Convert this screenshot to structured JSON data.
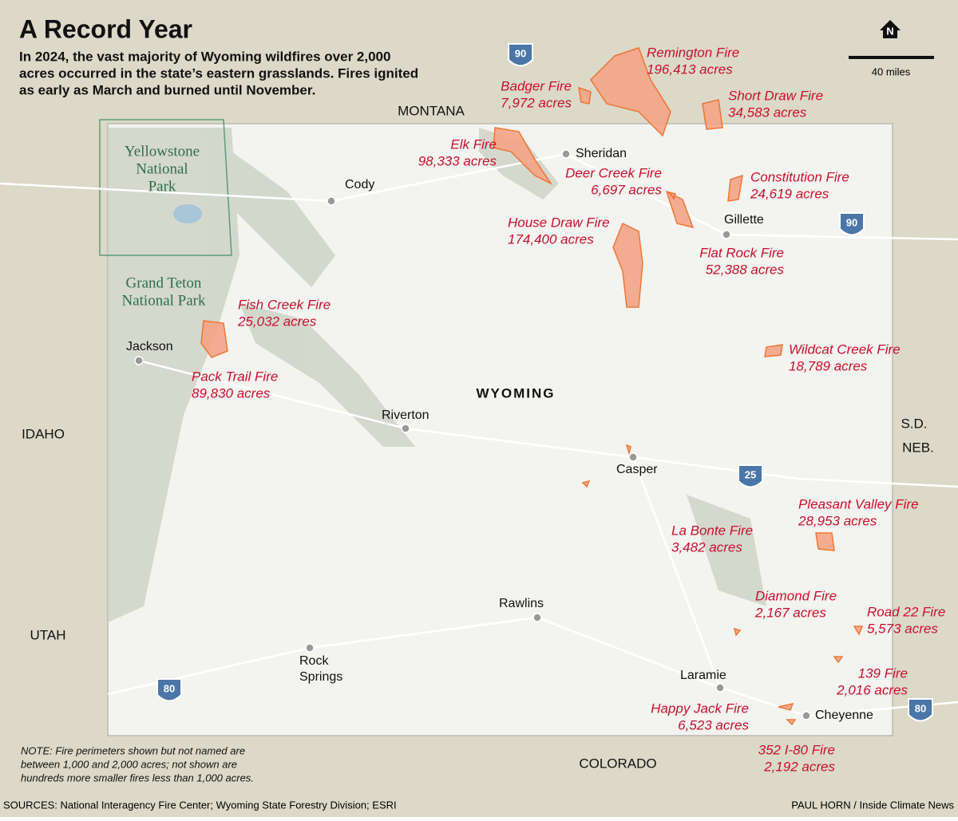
{
  "header": {
    "title": "A Record Year",
    "subtitle": [
      "In 2024, the vast majority of Wyoming wildfires over 2,000",
      "acres occurred in the state’s eastern grasslands. Fires ignited",
      "as early as March and burned until November."
    ]
  },
  "fires": [
    {
      "name": "Remington Fire",
      "acres": "196,413 acres"
    },
    {
      "name": "Badger Fire",
      "acres": "7,972 acres"
    },
    {
      "name": "Short Draw Fire",
      "acres": "34,583 acres"
    },
    {
      "name": "Elk Fire",
      "acres": "98,333 acres"
    },
    {
      "name": "Deer Creek Fire",
      "acres": "6,697 acres"
    },
    {
      "name": "Constitution Fire",
      "acres": "24,619 acres"
    },
    {
      "name": "House Draw Fire",
      "acres": "174,400 acres"
    },
    {
      "name": "Flat Rock Fire",
      "acres": "52,388 acres"
    },
    {
      "name": "Fish Creek Fire",
      "acres": "25,032 acres"
    },
    {
      "name": "Pack Trail Fire",
      "acres": "89,830 acres"
    },
    {
      "name": "Wildcat Creek Fire",
      "acres": "18,789 acres"
    },
    {
      "name": "Pleasant Valley Fire",
      "acres": "28,953 acres"
    },
    {
      "name": "La Bonte Fire",
      "acres": "3,482 acres"
    },
    {
      "name": "Diamond Fire",
      "acres": "2,167 acres"
    },
    {
      "name": "Road 22 Fire",
      "acres": "5,573 acres"
    },
    {
      "name": "139 Fire",
      "acres": "2,016 acres"
    },
    {
      "name": "Happy Jack Fire",
      "acres": "6,523 acres"
    },
    {
      "name": "352 I-80 Fire",
      "acres": "2,192 acres"
    }
  ],
  "states": [
    "MONTANA",
    "IDAHO",
    "UTAH",
    "COLORADO",
    "S.D.",
    "NEB.",
    "WYOMING"
  ],
  "cities": [
    [
      "Cody"
    ],
    [
      "Sheridan"
    ],
    [
      "Gillette"
    ],
    [
      "Jackson"
    ],
    [
      "Riverton"
    ],
    [
      "Casper"
    ],
    [
      "Rawlins"
    ],
    [
      "Rock",
      "Springs"
    ],
    [
      "Laramie"
    ],
    [
      "Cheyenne"
    ]
  ],
  "parks": [
    [
      "Yellowstone",
      "National",
      "Park"
    ],
    [
      "Grand Teton",
      "National Park"
    ]
  ],
  "highways": [
    "90",
    "90",
    "25",
    "80",
    "80"
  ],
  "scale": "40 miles",
  "north": "N",
  "note": [
    "NOTE: Fire perimeters shown but not named are",
    "between 1,000 and 2,000 acres; not shown are",
    "hundreds more smaller fires less than 1,000 acres."
  ],
  "sources": "SOURCES: National Interagency Fire Center; Wyoming State Forestry Division; ESRI",
  "credit": "PAUL HORN / Inside Climate News"
}
